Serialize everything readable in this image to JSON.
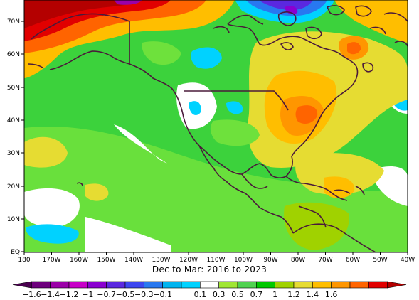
{
  "map": {
    "subtitle": "Dec to Mar: 2016 to 2023",
    "lat_labels": [
      "70N",
      "60N",
      "50N",
      "40N",
      "30N",
      "20N",
      "10N",
      "EQ"
    ],
    "lon_labels": [
      "180",
      "170W",
      "160W",
      "150W",
      "140W",
      "130W",
      "120W",
      "110W",
      "100W",
      "90W",
      "80W",
      "70W",
      "60W",
      "50W",
      "40W"
    ],
    "extent": {
      "lon": [
        -180,
        -40
      ],
      "lat": [
        0,
        75
      ]
    }
  },
  "colorbar": {
    "labels": [
      "-1.6",
      "-1.4",
      "-1.2",
      "-1",
      "-0.7",
      "-0.5",
      "-0.3",
      "-0.1",
      "0.1",
      "0.3",
      "0.5",
      "0.7",
      "1",
      "1.2",
      "1.4",
      "1.6"
    ],
    "colors": [
      "#4b0050",
      "#6e007d",
      "#9b00a8",
      "#c800c8",
      "#8a00d0",
      "#5a28e0",
      "#3c46f0",
      "#2878f0",
      "#00b4f0",
      "#00d2ff",
      "#ffffff",
      "#a0e632",
      "#50d250",
      "#00c800",
      "#a0d200",
      "#e6dc32",
      "#ffbe00",
      "#ff9600",
      "#ff6400",
      "#e10000",
      "#b40000"
    ]
  }
}
